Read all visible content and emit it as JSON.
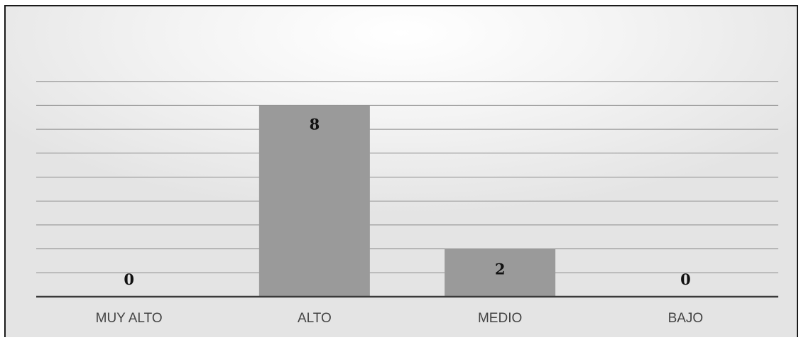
{
  "chart_data": {
    "type": "bar",
    "categories": [
      "MUY ALTO",
      "ALTO",
      "MEDIO",
      "BAJO"
    ],
    "values": [
      0,
      8,
      2,
      0
    ],
    "data_labels": [
      "0",
      "8",
      "2",
      "0"
    ],
    "title": "",
    "xlabel": "",
    "ylabel": "",
    "ylim": [
      0,
      9
    ],
    "grid": true,
    "legend": "none",
    "colors": {
      "bar": "#9a9a9a",
      "gridline": "#8c8c8c",
      "axis": "#3a3a3a"
    }
  }
}
